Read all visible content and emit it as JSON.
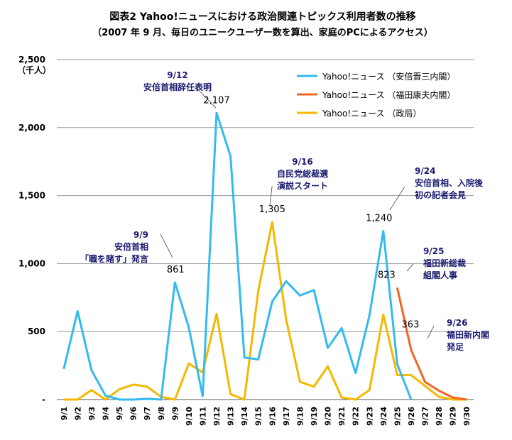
{
  "chart_data": {
    "type": "line",
    "title": "図表2 Yahoo!ニュースにおける政治関連トピックス利用者数の推移",
    "subtitle": "（2007 年 9 月、毎日のユニークユーザー数を算出、家庭のPCによるアクセス）",
    "ylabel": "（千人）",
    "xlabel": "",
    "ylim": [
      0,
      2500
    ],
    "yticks": [
      0,
      500,
      1000,
      1500,
      2000,
      2500
    ],
    "ytick_labels": [
      "-",
      "500",
      "1,000",
      "1,500",
      "2,000",
      "2,500"
    ],
    "grid": true,
    "legend_position": "top-right",
    "categories": [
      "9/1",
      "9/2",
      "9/3",
      "9/4",
      "9/5",
      "9/6",
      "9/7",
      "9/8",
      "9/9",
      "9/10",
      "9/11",
      "9/12",
      "9/13",
      "9/14",
      "9/15",
      "9/16",
      "9/17",
      "9/18",
      "9/19",
      "9/20",
      "9/21",
      "9/22",
      "9/23",
      "9/24",
      "9/25",
      "9/26",
      "9/27",
      "9/28",
      "9/29",
      "9/30"
    ],
    "series": [
      {
        "name": "Yahoo!ニュース （安倍晋三内閣）",
        "color": "#33bbee",
        "values": [
          225,
          650,
          215,
          30,
          0,
          0,
          5,
          0,
          861,
          530,
          25,
          2107,
          1790,
          310,
          295,
          720,
          870,
          765,
          805,
          380,
          525,
          195,
          620,
          1240,
          260,
          0,
          null,
          null,
          null,
          null
        ]
      },
      {
        "name": "Yahoo!ニュース （福田康夫内閣）",
        "color": "#f26522",
        "values": [
          null,
          null,
          null,
          null,
          null,
          null,
          null,
          null,
          null,
          null,
          null,
          null,
          null,
          null,
          null,
          null,
          null,
          null,
          null,
          null,
          null,
          null,
          null,
          null,
          823,
          363,
          130,
          65,
          15,
          0
        ]
      },
      {
        "name": "Yahoo!ニュース （政局）",
        "color": "#f5b800",
        "values": [
          0,
          0,
          70,
          0,
          75,
          110,
          95,
          20,
          0,
          265,
          200,
          630,
          40,
          0,
          800,
          1305,
          590,
          130,
          95,
          245,
          15,
          0,
          70,
          625,
          180,
          180,
          100,
          20,
          0,
          0
        ]
      }
    ],
    "data_labels": [
      {
        "text": "861",
        "category": "9/9",
        "series": 0
      },
      {
        "text": "2,107",
        "category": "9/12",
        "series": 0
      },
      {
        "text": "1,305",
        "category": "9/16",
        "series": 2
      },
      {
        "text": "1,240",
        "category": "9/24",
        "series": 0
      },
      {
        "text": "823",
        "category": "9/25",
        "series": 1
      },
      {
        "text": "363",
        "category": "9/26",
        "series": 1
      }
    ],
    "annotations": [
      {
        "category": "9/9",
        "lines": [
          "9/9",
          "安倍首相",
          "「職を賭す」発言"
        ]
      },
      {
        "category": "9/12",
        "lines": [
          "9/12",
          "安倍首相辞任表明"
        ]
      },
      {
        "category": "9/16",
        "lines": [
          "9/16",
          "自民党総裁選",
          "演説スタート"
        ]
      },
      {
        "category": "9/24",
        "lines": [
          "9/24",
          "安倍首相、入院後",
          "初の記者会見"
        ]
      },
      {
        "category": "9/25",
        "lines": [
          "9/25",
          "福田新総裁",
          "組閣人事"
        ]
      },
      {
        "category": "9/26",
        "lines": [
          "9/26",
          "福田新内閣",
          "発足"
        ]
      }
    ]
  }
}
